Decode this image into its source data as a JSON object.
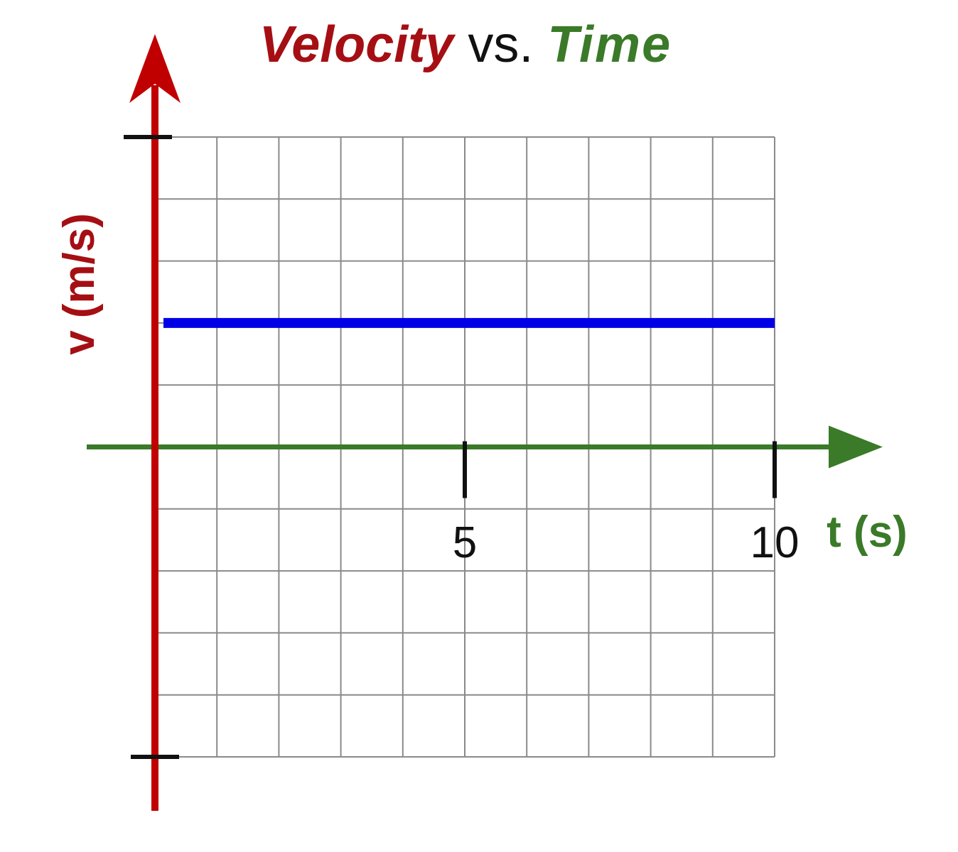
{
  "chart_data": {
    "type": "line",
    "title": {
      "part1": "Velocity",
      "part2": "vs.",
      "part3": "Time"
    },
    "xlabel": "t (s)",
    "ylabel": "v (m/s)",
    "x_ticks": [
      {
        "value": 5,
        "label": "5"
      },
      {
        "value": 10,
        "label": "10"
      }
    ],
    "xlim": [
      0,
      10
    ],
    "ylim": [
      -5,
      5
    ],
    "grid": true,
    "series": [
      {
        "x": [
          0,
          10
        ],
        "y": [
          2,
          2
        ]
      }
    ],
    "colors": {
      "velocity_axis": "#c00000",
      "time_axis": "#3a7a28",
      "series": "#0000e6",
      "grid": "#8a8a8a",
      "ticks": "#111111"
    }
  }
}
